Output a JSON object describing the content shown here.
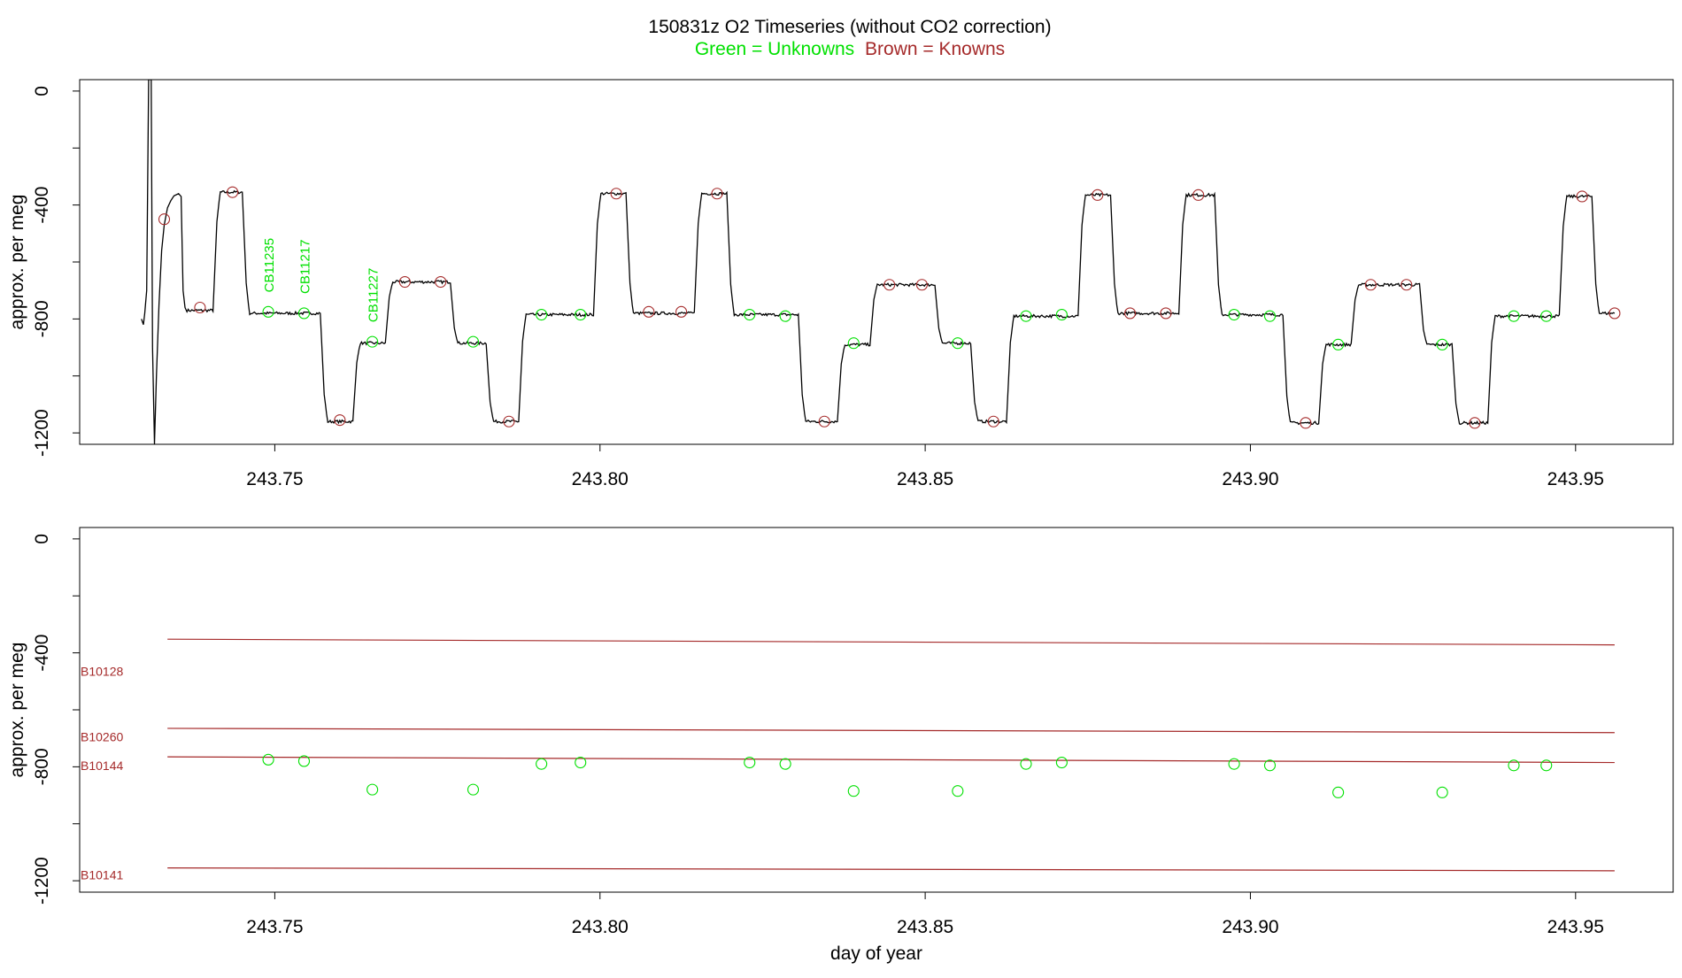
{
  "title": {
    "main": "150831z    O2 Timeseries (without CO2 correction)",
    "legend_green": "Green = Unknowns",
    "legend_brown": "Brown = Knowns"
  },
  "colors": {
    "unknown": "#00e000",
    "known": "#a52a2a",
    "trace": "#000000",
    "axis": "#000000"
  },
  "chart_data": [
    {
      "type": "line",
      "panel": "top",
      "ylabel": "approx. per meg",
      "xlabel": "",
      "xlim": [
        243.72,
        243.965
      ],
      "ylim": [
        -1240,
        40
      ],
      "x_ticks": [
        243.75,
        243.8,
        243.85,
        243.9,
        243.95
      ],
      "x_tick_labels": [
        "243.75",
        "243.80",
        "243.85",
        "243.90",
        "243.95"
      ],
      "y_ticks": [
        0,
        -200,
        -400,
        -600,
        -800,
        -1000,
        -1200
      ],
      "y_tick_labels": [
        "0",
        "-400",
        "-800",
        "-1200"
      ],
      "grid": false,
      "trace_levels": [
        {
          "x0": 243.733,
          "x1": 243.7405,
          "y": -770
        },
        {
          "x0": 243.7405,
          "x1": 243.745,
          "y": -355
        },
        {
          "x0": 243.745,
          "x1": 243.757,
          "y": -780
        },
        {
          "x0": 243.757,
          "x1": 243.762,
          "y": -1160
        },
        {
          "x0": 243.762,
          "x1": 243.767,
          "y": -885
        },
        {
          "x0": 243.767,
          "x1": 243.777,
          "y": -670
        },
        {
          "x0": 243.777,
          "x1": 243.7825,
          "y": -885
        },
        {
          "x0": 243.7825,
          "x1": 243.7875,
          "y": -1160
        },
        {
          "x0": 243.7875,
          "x1": 243.799,
          "y": -785
        },
        {
          "x0": 243.799,
          "x1": 243.804,
          "y": -360
        },
        {
          "x0": 243.804,
          "x1": 243.8145,
          "y": -780
        },
        {
          "x0": 243.8145,
          "x1": 243.8195,
          "y": -360
        },
        {
          "x0": 243.8195,
          "x1": 243.8305,
          "y": -785
        },
        {
          "x0": 243.8305,
          "x1": 243.8365,
          "y": -1160
        },
        {
          "x0": 243.8365,
          "x1": 243.8415,
          "y": -890
        },
        {
          "x0": 243.8415,
          "x1": 243.8515,
          "y": -680
        },
        {
          "x0": 243.8515,
          "x1": 243.857,
          "y": -885
        },
        {
          "x0": 243.857,
          "x1": 243.8625,
          "y": -1160
        },
        {
          "x0": 243.8625,
          "x1": 243.8735,
          "y": -790
        },
        {
          "x0": 243.8735,
          "x1": 243.8785,
          "y": -365
        },
        {
          "x0": 243.8785,
          "x1": 243.889,
          "y": -780
        },
        {
          "x0": 243.889,
          "x1": 243.8945,
          "y": -365
        },
        {
          "x0": 243.8945,
          "x1": 243.905,
          "y": -785
        },
        {
          "x0": 243.905,
          "x1": 243.9105,
          "y": -1165
        },
        {
          "x0": 243.9105,
          "x1": 243.9155,
          "y": -890
        },
        {
          "x0": 243.9155,
          "x1": 243.926,
          "y": -680
        },
        {
          "x0": 243.926,
          "x1": 243.931,
          "y": -890
        },
        {
          "x0": 243.931,
          "x1": 243.9365,
          "y": -1165
        },
        {
          "x0": 243.9365,
          "x1": 243.9475,
          "y": -790
        },
        {
          "x0": 243.9475,
          "x1": 243.9525,
          "y": -370
        },
        {
          "x0": 243.9525,
          "x1": 243.956,
          "y": -780
        }
      ],
      "known_points": {
        "x": [
          243.733,
          243.7385,
          243.7435,
          243.76,
          243.77,
          243.7755,
          243.786,
          243.8025,
          243.8075,
          243.8125,
          243.818,
          243.8345,
          243.8445,
          243.8495,
          243.8605,
          243.8765,
          243.8815,
          243.887,
          243.892,
          243.9085,
          243.9185,
          243.924,
          243.9345,
          243.951,
          243.956
        ],
        "y": [
          -450,
          -760,
          -355,
          -1155,
          -670,
          -670,
          -1160,
          -360,
          -775,
          -775,
          -360,
          -1160,
          -680,
          -680,
          -1160,
          -365,
          -780,
          -780,
          -365,
          -1165,
          -680,
          -680,
          -1165,
          -370,
          -780
        ]
      },
      "unknown_points": {
        "x": [
          243.749,
          243.7545,
          243.765,
          243.7805,
          243.791,
          243.797,
          243.823,
          243.8285,
          243.839,
          243.855,
          243.8655,
          243.871,
          243.8975,
          243.903,
          243.9135,
          243.9295,
          243.9405,
          243.9455
        ],
        "y": [
          -775,
          -780,
          -880,
          -880,
          -785,
          -785,
          -785,
          -790,
          -885,
          -885,
          -790,
          -785,
          -785,
          -790,
          -890,
          -890,
          -790,
          -790
        ]
      },
      "annotations": [
        {
          "text": "CB11235",
          "x": 243.749,
          "y": -775
        },
        {
          "text": "CB11217",
          "x": 243.7545,
          "y": -780
        },
        {
          "text": "CB11227",
          "x": 243.765,
          "y": -880
        }
      ]
    },
    {
      "type": "scatter",
      "panel": "bottom",
      "ylabel": "approx. per meg",
      "xlabel": "day of year",
      "xlim": [
        243.72,
        243.965
      ],
      "ylim": [
        -1240,
        40
      ],
      "x_ticks": [
        243.75,
        243.8,
        243.85,
        243.9,
        243.95
      ],
      "x_tick_labels": [
        "243.75",
        "243.80",
        "243.85",
        "243.90",
        "243.95"
      ],
      "y_ticks": [
        0,
        -200,
        -400,
        -600,
        -800,
        -1000,
        -1200
      ],
      "y_tick_labels": [
        "0",
        "-400",
        "-800",
        "-1200"
      ],
      "grid": false,
      "reference_lines": [
        {
          "name": "B10128",
          "x": [
            243.7335,
            243.956
          ],
          "y": [
            -352,
            -372
          ],
          "label_y": -465
        },
        {
          "name": "B10260",
          "x": [
            243.7335,
            243.956
          ],
          "y": [
            -665,
            -680
          ],
          "label_y": -695
        },
        {
          "name": "B10144",
          "x": [
            243.7335,
            243.956
          ],
          "y": [
            -765,
            -785
          ],
          "label_y": -795
        },
        {
          "name": "B10141",
          "x": [
            243.7335,
            243.956
          ],
          "y": [
            -1155,
            -1165
          ],
          "label_y": -1180
        }
      ],
      "unknown_points": {
        "x": [
          243.749,
          243.7545,
          243.765,
          243.7805,
          243.791,
          243.797,
          243.823,
          243.8285,
          243.839,
          243.855,
          243.8655,
          243.871,
          243.8975,
          243.903,
          243.9135,
          243.9295,
          243.9405,
          243.9455
        ],
        "y": [
          -775,
          -780,
          -880,
          -880,
          -790,
          -785,
          -785,
          -790,
          -885,
          -885,
          -790,
          -785,
          -790,
          -795,
          -890,
          -890,
          -795,
          -795
        ]
      }
    }
  ]
}
